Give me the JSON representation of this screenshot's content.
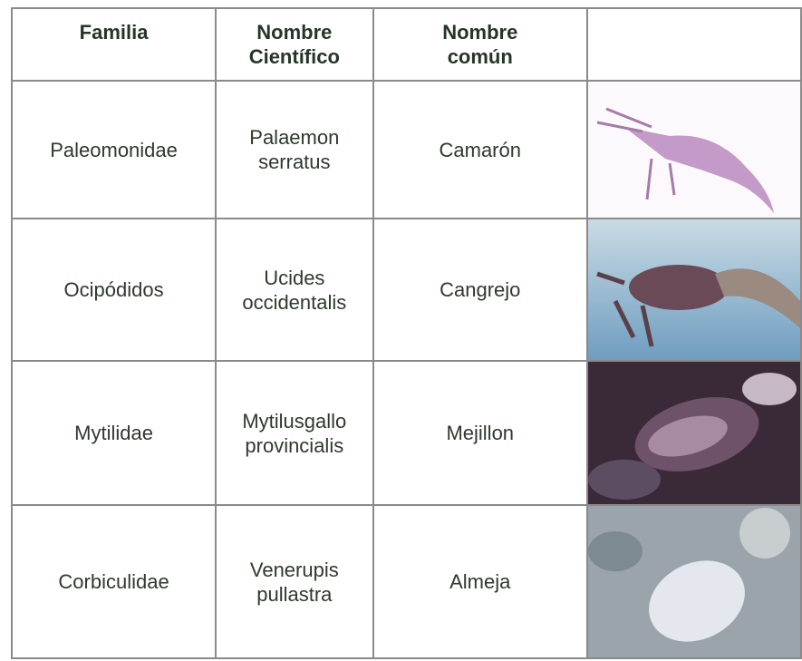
{
  "table": {
    "header": [
      "Familia",
      "Nombre Científico",
      "Nombre común"
    ],
    "rows": [
      [
        "Paleomonidae",
        "Palaemon serratus",
        "Camarón"
      ],
      [
        "Ocipódidos",
        "Ucides occidentalis",
        "Cangrejo"
      ],
      [
        "Mytilidae",
        "Mytilusgallo provincialis",
        "Mejillon"
      ],
      [
        "Corbiculidae",
        "Venerupis pullastra",
        "Almeja"
      ]
    ]
  }
}
